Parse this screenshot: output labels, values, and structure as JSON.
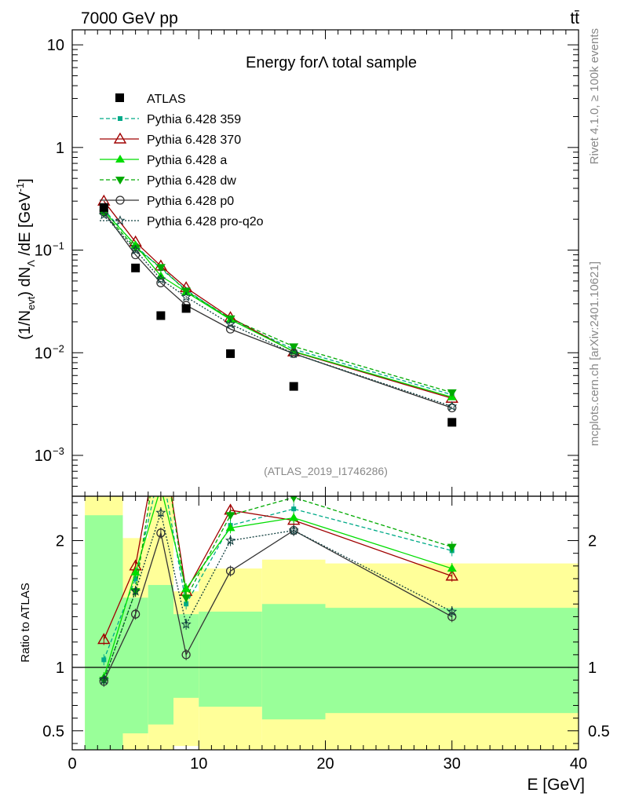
{
  "header": {
    "beam": "7000 GeV pp",
    "process": "tt̄"
  },
  "side": {
    "rivet": "Rivet 4.1.0, ≥ 100k events",
    "mcplots": "mcplots.cern.ch [arXiv:2401.10621]"
  },
  "chart_data": {
    "type": "line",
    "title": "Energy forΛ total sample",
    "analysis_tag": "(ATLAS_2019_I1746286)",
    "xlabel": "E [GeV]",
    "ylabel": "(1/N_evt) dN_Λ/dE [GeV^-1]",
    "ylabel_parts": {
      "a": "(1/N",
      "b": "evt",
      "c": ") dN",
      "d": "Λ",
      "e": " /dE [GeV",
      "f": "-1",
      "g": "]"
    },
    "ratio_ylabel": "Ratio to ATLAS",
    "xlim": [
      0,
      40
    ],
    "ylim": [
      0.0004,
      14
    ],
    "yscale": "log",
    "ratio_ylim": [
      0.35,
      2.35
    ],
    "x_ticks": [
      {
        "value": 0,
        "label": "0"
      },
      {
        "value": 10,
        "label": "10"
      },
      {
        "value": 20,
        "label": "20"
      },
      {
        "value": 30,
        "label": "30"
      },
      {
        "value": 40,
        "label": "40"
      }
    ],
    "y_ticks": [
      {
        "value": 10,
        "base": "10",
        "exp": ""
      },
      {
        "value": 1,
        "base": "1",
        "exp": ""
      },
      {
        "value": 0.1,
        "base": "10",
        "exp": "−1"
      },
      {
        "value": 0.01,
        "base": "10",
        "exp": "−2"
      },
      {
        "value": 0.001,
        "base": "10",
        "exp": "−3"
      }
    ],
    "ratio_ticks": [
      {
        "value": 2,
        "label": "2"
      },
      {
        "value": 1,
        "label": "1"
      },
      {
        "value": 0.5,
        "label": "0.5"
      }
    ],
    "x": [
      2.5,
      5,
      7,
      9,
      12.5,
      17.5,
      30
    ],
    "data": {
      "name": "ATLAS",
      "values": [
        0.26,
        0.067,
        0.023,
        0.027,
        0.0098,
        0.0047,
        0.0021
      ]
    },
    "uncertainty_bands": [
      {
        "x0": 1,
        "x1": 4,
        "green": [
          0.35,
          2.2
        ],
        "yellow": [
          0.35,
          2.35
        ]
      },
      {
        "x0": 4,
        "x1": 6,
        "green": [
          0.48,
          1.55
        ],
        "yellow": [
          0.35,
          2.02
        ]
      },
      {
        "x0": 6,
        "x1": 8,
        "green": [
          0.55,
          1.65
        ],
        "yellow": [
          0.35,
          2.35
        ]
      },
      {
        "x0": 8,
        "x1": 10,
        "green": [
          0.76,
          1.42
        ],
        "yellow": [
          0.38,
          1.6
        ]
      },
      {
        "x0": 10,
        "x1": 15,
        "green": [
          0.69,
          1.44
        ],
        "yellow": [
          0.35,
          1.78
        ]
      },
      {
        "x0": 15,
        "x1": 20,
        "green": [
          0.59,
          1.5
        ],
        "yellow": [
          0.35,
          1.85
        ]
      },
      {
        "x0": 20,
        "x1": 40,
        "green": [
          0.64,
          1.47
        ],
        "yellow": [
          0.35,
          1.82
        ]
      }
    ],
    "series": [
      {
        "name": "Pythia 6.428 359",
        "color": "#00aa88",
        "dash": "5,3",
        "marker": "square-small",
        "values": [
          0.25,
          0.11,
          0.066,
          0.041,
          0.021,
          0.0108,
          0.0039
        ],
        "ratio": [
          1.06,
          1.7,
          2.6,
          1.5,
          2.12,
          2.25,
          1.92
        ]
      },
      {
        "name": "Pythia 6.428 370",
        "color": "#a00000",
        "dash": "",
        "marker": "triangle-open",
        "values": [
          0.3,
          0.12,
          0.07,
          0.043,
          0.022,
          0.0102,
          0.0036
        ],
        "ratio": [
          1.22,
          1.8,
          2.9,
          1.6,
          2.24,
          2.16,
          1.72
        ]
      },
      {
        "name": "Pythia 6.428 a",
        "color": "#00dd00",
        "dash": "",
        "marker": "triangle-filled",
        "values": [
          0.24,
          0.112,
          0.056,
          0.039,
          0.021,
          0.0103,
          0.0037
        ],
        "ratio": [
          0.92,
          1.75,
          2.42,
          1.62,
          2.1,
          2.18,
          1.78
        ]
      },
      {
        "name": "Pythia 6.428 dw",
        "color": "#00aa00",
        "dash": "5,3",
        "marker": "triangle-down-filled",
        "values": [
          0.23,
          0.105,
          0.068,
          0.04,
          0.0215,
          0.0115,
          0.0041
        ],
        "ratio": [
          0.9,
          1.6,
          2.9,
          1.55,
          2.2,
          2.34,
          1.95
        ]
      },
      {
        "name": "Pythia 6.428 p0",
        "color": "#333333",
        "dash": "",
        "marker": "circle-open",
        "values": [
          0.235,
          0.09,
          0.048,
          0.029,
          0.017,
          0.0098,
          0.0029
        ],
        "ratio": [
          0.89,
          1.42,
          2.06,
          1.1,
          1.76,
          2.08,
          1.4
        ]
      },
      {
        "name": "Pythia 6.428 pro-q2o",
        "color": "#0f3d3d",
        "dash": "2,2",
        "marker": "star",
        "values": [
          0.22,
          0.1,
          0.052,
          0.035,
          0.019,
          0.0098,
          0.003
        ],
        "ratio": [
          0.9,
          1.6,
          2.22,
          1.34,
          2.0,
          2.08,
          1.44
        ]
      }
    ]
  }
}
